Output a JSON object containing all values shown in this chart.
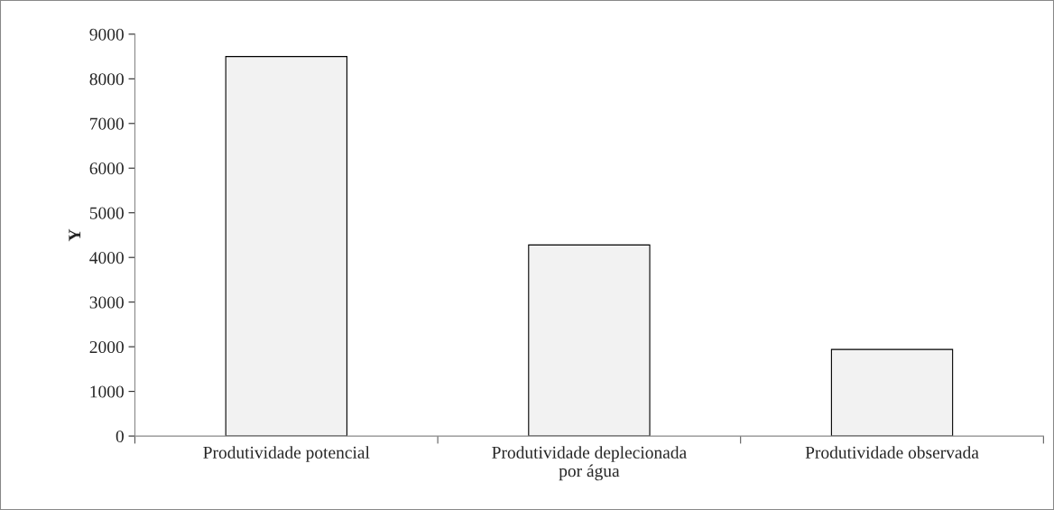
{
  "chart_data": {
    "type": "bar",
    "ylabel": "Y",
    "categories": [
      "Produtividade potencial",
      "Produtividade deplecionada\npor água",
      "Produtividade observada"
    ],
    "values": [
      8500,
      4280,
      1940
    ],
    "color": "#f2f2f2",
    "ylim": [
      0,
      9000
    ],
    "yticks": [
      0,
      1000,
      2000,
      3000,
      4000,
      5000,
      6000,
      7000,
      8000,
      9000
    ]
  }
}
